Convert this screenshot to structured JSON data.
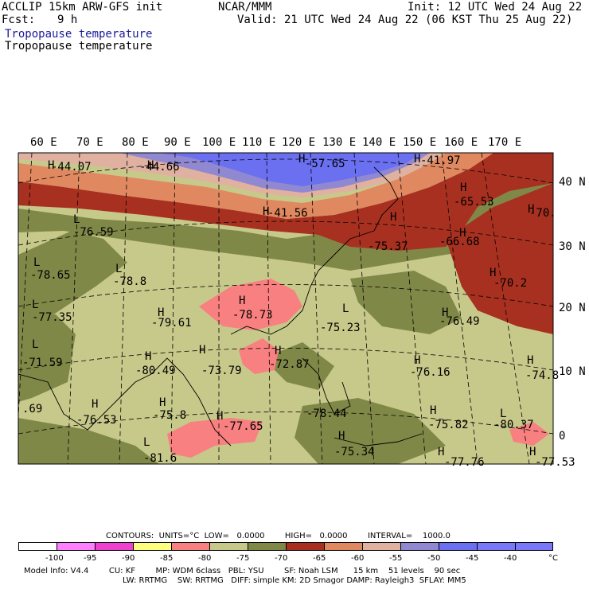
{
  "header": {
    "model_title": "ACCLIP 15km ARW-GFS init",
    "center": "NCAR/MMM",
    "init": "Init: 12 UTC Wed 24 Aug 22",
    "fcst_label": "Fcst:",
    "fcst_value": "9 h",
    "valid": "Valid: 21 UTC Wed 24 Aug 22 (06 KST Thu 25 Aug 22)",
    "field_blue": "Tropopause temperature",
    "field_black": "Tropopause temperature"
  },
  "map": {
    "lon_labels": [
      "60 E",
      "70 E",
      "80 E",
      "90 E",
      "100 E",
      "110 E",
      "120 E",
      "130 E",
      "140 E",
      "150 E",
      "160 E",
      "170 E"
    ],
    "lat_labels": [
      "40 N",
      "30 N",
      "20 N",
      "10 N",
      "0"
    ],
    "colors": {
      "c_light_olive": "#c7c98a",
      "c_olive": "#808848",
      "c_brown": "#a83020",
      "c_salmon": "#e08860",
      "c_tan": "#e0b0a0",
      "c_purple": "#9088d0",
      "c_blue": "#6a70f0",
      "c_pink": "#f88080"
    },
    "extrema": [
      {
        "sym": "H",
        "val": "-44.07"
      },
      {
        "sym": "H",
        "val": "-44.66"
      },
      {
        "sym": "H",
        "val": "-57.65"
      },
      {
        "sym": "H",
        "val": "-41.97"
      },
      {
        "sym": "H",
        "val": "-41.56"
      },
      {
        "sym": "H",
        "val": "-65.53"
      },
      {
        "sym": "H",
        "val": "-70."
      },
      {
        "sym": "L",
        "val": "-76.59"
      },
      {
        "sym": "H",
        "val": "-75.37"
      },
      {
        "sym": "H",
        "val": "-66.68"
      },
      {
        "sym": "L",
        "val": "-78.65"
      },
      {
        "sym": "L",
        "val": "-78.8"
      },
      {
        "sym": "H",
        "val": "-70.2"
      },
      {
        "sym": "H",
        "val": "-78.73"
      },
      {
        "sym": "L",
        "val": "-77.35"
      },
      {
        "sym": "H",
        "val": "-79.61"
      },
      {
        "sym": "L",
        "val": "-75.23"
      },
      {
        "sym": "H",
        "val": "-76.49"
      },
      {
        "sym": "L",
        "val": "-71.59"
      },
      {
        "sym": "H",
        "val": "-80.49"
      },
      {
        "sym": "H",
        "val": "-73.79"
      },
      {
        "sym": "H",
        "val": "-72.87"
      },
      {
        "sym": "H",
        "val": "-76.16"
      },
      {
        "sym": "H",
        "val": "-74.8"
      },
      {
        "sym": "",
        "val": ".69"
      },
      {
        "sym": "H",
        "val": "-76.53"
      },
      {
        "sym": "H",
        "val": "-75.8"
      },
      {
        "sym": "H",
        "val": "-77.65"
      },
      {
        "sym": "",
        "val": "-78.44"
      },
      {
        "sym": "H",
        "val": "-75.82"
      },
      {
        "sym": "L",
        "val": "-80.37"
      },
      {
        "sym": "H",
        "val": "-75.34"
      },
      {
        "sym": "L",
        "val": "-81.6"
      },
      {
        "sym": "H",
        "val": "-77.76"
      },
      {
        "sym": "H",
        "val": "-77.53"
      }
    ]
  },
  "contours": {
    "text": "CONTOURS:  UNITS=°C  LOW=   0.0000        HIGH=   0.0000        INTERVAL=    1000.0"
  },
  "colorbar": {
    "colors": [
      "#ffffff",
      "#ff80ff",
      "#f040d0",
      "#ffff80",
      "#f88080",
      "#c7c98a",
      "#808848",
      "#a83020",
      "#e08860",
      "#e0b0a0",
      "#9088d0",
      "#6a70f0",
      "#7878f8"
    ],
    "labels": [
      "-100",
      "-95",
      "-90",
      "-85",
      "-80",
      "-75",
      "-70",
      "-65",
      "-60",
      "-55",
      "-50",
      "-45",
      "-40"
    ],
    "unit": "°C"
  },
  "footer": {
    "line1": "Model Info: V4.4        CU: KF        MP: WDM 6class   PBL: YSU        SF: Noah LSM      15 km    51 levels    90 sec",
    "line2": "LW: RRTMG    SW: RRTMG   DIFF: simple KM: 2D Smagor DAMP: Rayleigh3  SFLAY: MM5"
  }
}
